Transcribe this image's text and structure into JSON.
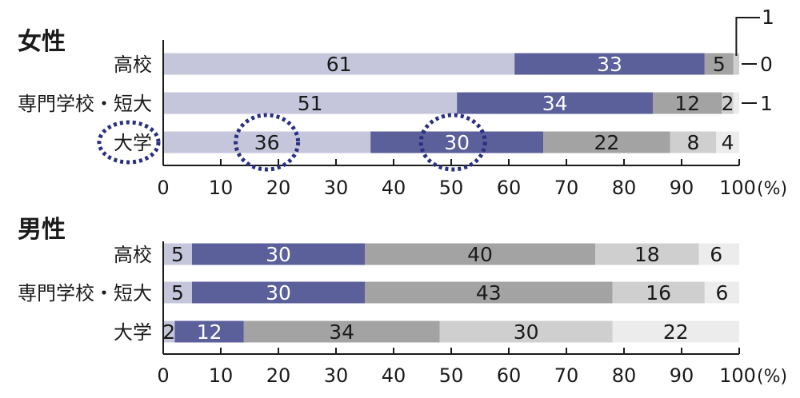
{
  "chart_data": [
    {
      "type": "bar",
      "stacked": true,
      "orientation": "horizontal",
      "title": "女性",
      "categories": [
        "高校",
        "専門学校・短大",
        "大学"
      ],
      "series": [
        {
          "values": [
            61,
            51,
            36
          ],
          "color": "#c5c6db",
          "label_color": "#1a1a1a"
        },
        {
          "values": [
            33,
            34,
            30
          ],
          "color": "#5b5f9a",
          "label_color": "#ffffff"
        },
        {
          "values": [
            5,
            12,
            22
          ],
          "color": "#a3a3a3",
          "label_color": "#1a1a1a"
        },
        {
          "values": [
            1,
            2,
            8
          ],
          "color": "#cfcfcf",
          "label_color": "#1a1a1a"
        },
        {
          "values": [
            0,
            1,
            4
          ],
          "color": "#ececec",
          "label_color": "#1a1a1a"
        }
      ],
      "outside_labels": [
        {
          "category": "高校",
          "series": 3,
          "text": "1"
        },
        {
          "category": "高校",
          "series": 4,
          "text": "0"
        },
        {
          "category": "専門学校・短大",
          "series": 4,
          "text": "1"
        }
      ],
      "highlighted": [
        "大学",
        "大学:36",
        "大学:30"
      ],
      "xlim": [
        0,
        100
      ],
      "xticks": [
        0,
        10,
        20,
        30,
        40,
        50,
        60,
        70,
        80,
        90,
        100
      ],
      "xunit": "(%)"
    },
    {
      "type": "bar",
      "stacked": true,
      "orientation": "horizontal",
      "title": "男性",
      "categories": [
        "高校",
        "専門学校・短大",
        "大学"
      ],
      "series": [
        {
          "values": [
            5,
            5,
            2
          ],
          "color": "#c5c6db",
          "label_color": "#1a1a1a"
        },
        {
          "values": [
            30,
            30,
            12
          ],
          "color": "#5b5f9a",
          "label_color": "#ffffff"
        },
        {
          "values": [
            40,
            43,
            34
          ],
          "color": "#a3a3a3",
          "label_color": "#1a1a1a"
        },
        {
          "values": [
            18,
            16,
            30
          ],
          "color": "#cfcfcf",
          "label_color": "#1a1a1a"
        },
        {
          "values": [
            6,
            6,
            22
          ],
          "color": "#ececec",
          "label_color": "#1a1a1a"
        }
      ],
      "outside_labels": [],
      "highlighted": [],
      "xlim": [
        0,
        100
      ],
      "xticks": [
        0,
        10,
        20,
        30,
        40,
        50,
        60,
        70,
        80,
        90,
        100
      ],
      "xunit": "(%)"
    }
  ]
}
